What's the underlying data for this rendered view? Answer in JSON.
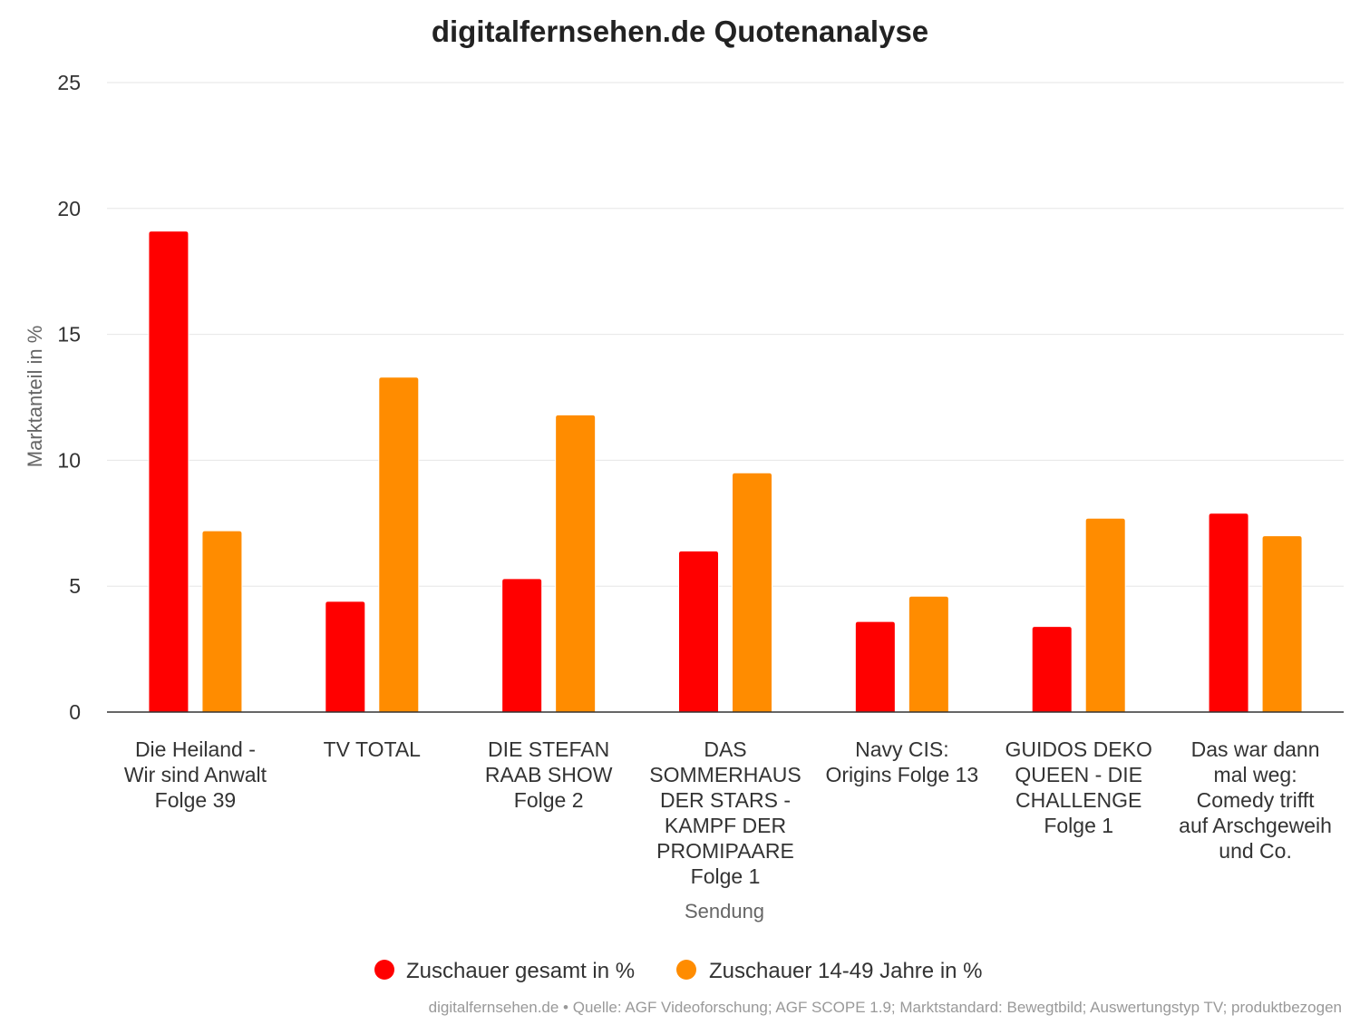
{
  "colors": {
    "series_total": "#ff0000",
    "series_young": "#ff8c00"
  },
  "chart_data": {
    "type": "bar",
    "title": "digitalfernsehen.de Quotenanalyse",
    "xlabel": "Sendung",
    "ylabel": "Marktanteil in %",
    "ylim": [
      0,
      25
    ],
    "yticks": [
      0,
      5,
      10,
      15,
      20,
      25
    ],
    "grid": true,
    "legend": "bottom",
    "categories": [
      [
        "Die Heiland -",
        "Wir sind Anwalt",
        "Folge 39"
      ],
      [
        "TV TOTAL"
      ],
      [
        "DIE STEFAN",
        "RAAB SHOW",
        "Folge 2"
      ],
      [
        "DAS",
        "SOMMERHAUS",
        "DER STARS -",
        "KAMPF DER",
        "PROMIPAARE",
        "Folge 1"
      ],
      [
        "Navy CIS:",
        "Origins Folge 13"
      ],
      [
        "GUIDOS DEKO",
        "QUEEN - DIE",
        "CHALLENGE",
        "Folge 1"
      ],
      [
        "Das war dann",
        "mal weg:",
        "Comedy trifft",
        "auf Arschgeweih",
        "und Co."
      ]
    ],
    "series": [
      {
        "name": "Zuschauer gesamt in %",
        "color": "#ff0000",
        "values": [
          19.1,
          4.4,
          5.3,
          6.4,
          3.6,
          3.4,
          7.9
        ]
      },
      {
        "name": "Zuschauer 14-49 Jahre in %",
        "color": "#ff8c00",
        "values": [
          7.2,
          13.3,
          11.8,
          9.5,
          4.6,
          7.7,
          7.0
        ]
      }
    ],
    "credits": "digitalfernsehen.de • Quelle: AGF Videoforschung; AGF SCOPE 1.9; Marktstandard: Bewegtbild; Auswertungstyp TV; produktbezogen"
  }
}
